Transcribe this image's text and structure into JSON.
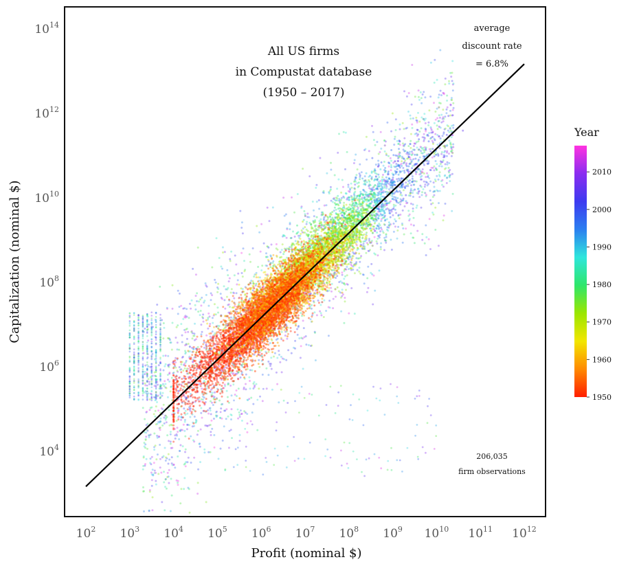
{
  "chart_data": {
    "type": "scatter",
    "title_lines": [
      "All US firms",
      "in Compustat database",
      "(1950 – 2017)"
    ],
    "xlabel": "Profit (nominal $)",
    "ylabel": "Capitalization (nominal $)",
    "x_scale": "log10",
    "y_scale": "log10",
    "xlim": [
      100,
      1000000000000
    ],
    "ylim": [
      100,
      100000000000000
    ],
    "x_tick_exponents": [
      2,
      3,
      4,
      5,
      6,
      7,
      8,
      9,
      10,
      11,
      12
    ],
    "y_tick_exponents": [
      4,
      6,
      8,
      10,
      12,
      14
    ],
    "tick_base": "10",
    "grid": false,
    "fit_line": {
      "label_lines": [
        "average",
        "discount rate",
        "= 6.8%"
      ],
      "x": [
        100,
        1000000000000
      ],
      "y": [
        1470,
        14700000000000
      ],
      "discount_rate_percent": 6.8
    },
    "observations_note_lines": [
      "206,035",
      "firm observations"
    ],
    "color_scale": {
      "title": "Year",
      "min": 1950,
      "max": 2017,
      "tick_values": [
        1950,
        1960,
        1970,
        1980,
        1990,
        2000,
        2010
      ],
      "tick_labels": [
        "1950",
        "1960",
        "1970",
        "1980",
        "1990",
        "2000",
        "2010"
      ],
      "stops": [
        "#ff1e00",
        "#ff8a00",
        "#f2e600",
        "#9be600",
        "#2ee66a",
        "#2ee6dc",
        "#2b7ff0",
        "#3d3af0",
        "#8a2cf0",
        "#ff33e0"
      ]
    },
    "point_cloud_summary": {
      "description_points": [
        {
          "x": 1000000,
          "y": 10000000,
          "year": 1955
        },
        {
          "x": 10000000,
          "y": 100000000,
          "year": 1958
        },
        {
          "x": 100000000,
          "y": 1000000000,
          "year": 1975
        },
        {
          "x": 1000000000,
          "y": 10000000000,
          "year": 1995
        },
        {
          "x": 10000000000,
          "y": 100000000000,
          "year": 2008
        },
        {
          "x": 100000,
          "y": 3000000,
          "year": 1980
        },
        {
          "x": 10000,
          "y": 1000000,
          "year": 1990
        },
        {
          "x": 1000,
          "y": 1000000,
          "year": 1995
        }
      ]
    }
  }
}
